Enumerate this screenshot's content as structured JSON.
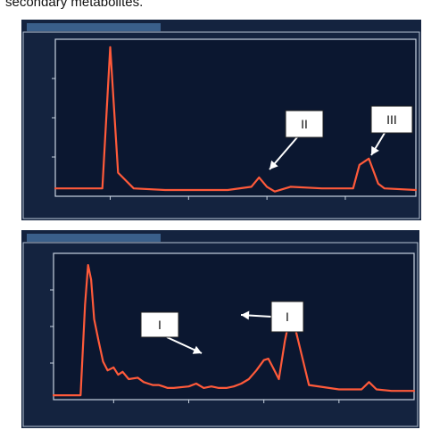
{
  "caption": "secondary metabolites.",
  "chart_data": [
    {
      "type": "line",
      "title": "",
      "xlabel": "",
      "ylabel": "",
      "grid": false,
      "x": [
        0,
        3,
        3.5,
        4,
        5,
        7,
        9,
        11,
        12.5,
        13,
        13.5,
        14,
        15,
        17,
        19,
        19.4,
        20,
        20.6,
        21,
        23
      ],
      "values": [
        5,
        5,
        95,
        15,
        5,
        4,
        4,
        4,
        6,
        12,
        6,
        3,
        6,
        5,
        5,
        20,
        24,
        8,
        5,
        4
      ],
      "annotations": [
        {
          "label": "II",
          "x": 13.3,
          "y": 12
        },
        {
          "label": "III",
          "x": 20,
          "y": 24
        }
      ]
    },
    {
      "type": "line",
      "title": "",
      "xlabel": "",
      "ylabel": "",
      "grid": false,
      "x": [
        0,
        1.8,
        2.1,
        2.3,
        2.5,
        2.7,
        3.0,
        3.3,
        3.6,
        4.0,
        4.3,
        4.6,
        5.0,
        5.6,
        6.0,
        6.3,
        6.6,
        7.0,
        7.3,
        7.6,
        8.0,
        9.0,
        9.5,
        10.0,
        10.5,
        11.0,
        11.5,
        12.0,
        12.5,
        13.0,
        13.5,
        14.0,
        14.3,
        14.6,
        15.0,
        15.4,
        15.8,
        16.2,
        17.0,
        19.0,
        20.5,
        21.0,
        21.5,
        22.5,
        24.0
      ],
      "values": [
        3,
        3,
        65,
        92,
        82,
        55,
        40,
        26,
        20,
        22,
        17,
        19,
        14,
        15,
        12,
        11,
        10,
        10,
        9,
        8,
        8,
        9,
        11,
        8,
        9,
        8,
        8,
        9,
        11,
        14,
        20,
        27,
        28,
        22,
        14,
        40,
        60,
        44,
        10,
        7,
        7,
        12,
        7,
        6,
        6
      ],
      "annotations": [
        {
          "label": "I",
          "x": 14.3,
          "y": 28
        },
        {
          "label": "I",
          "x": 15.8,
          "y": 60
        }
      ]
    }
  ]
}
